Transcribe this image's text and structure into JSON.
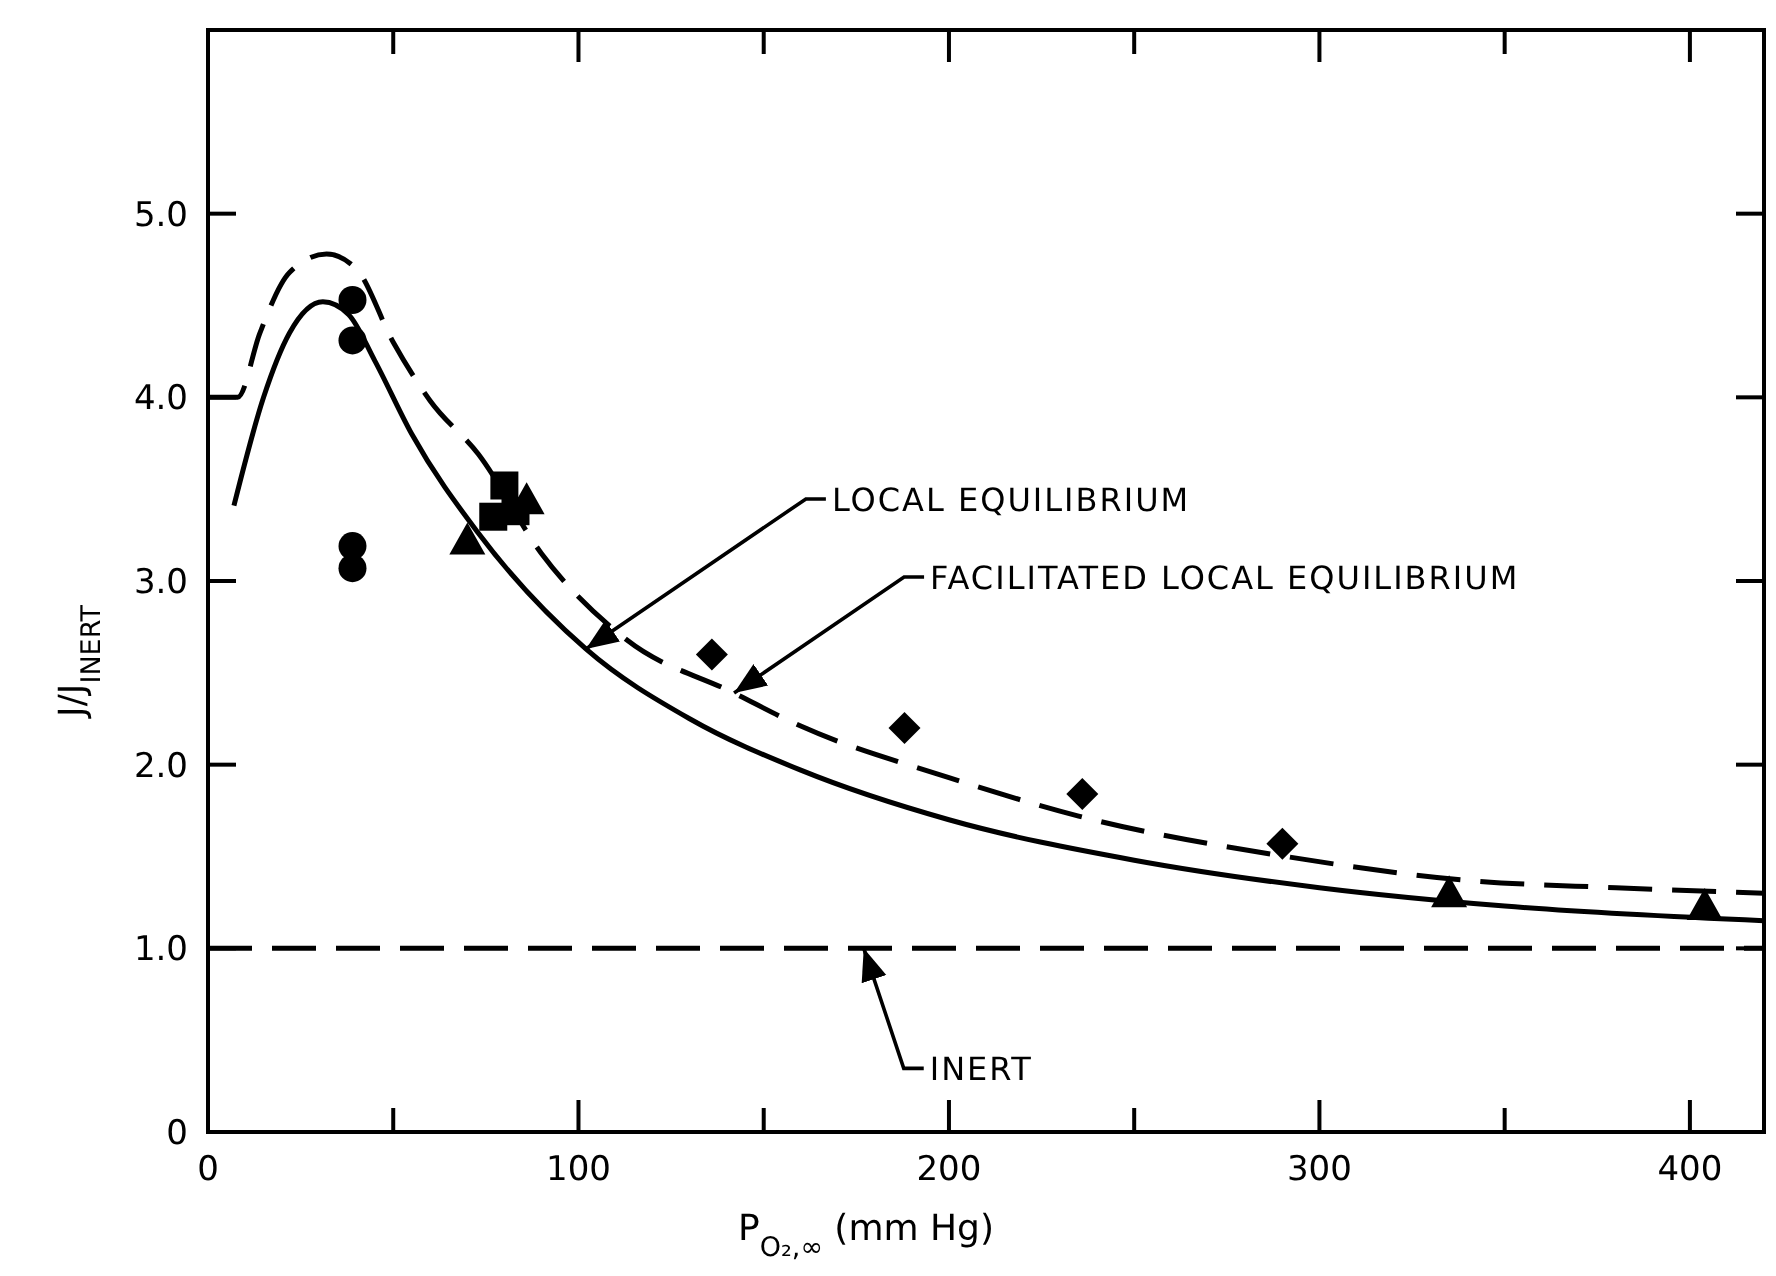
{
  "chart_data": {
    "type": "scatter",
    "xlabel": "P$_{O₂,∞}$ (mm Hg)",
    "ylabel": "J/J$_{INERT}$",
    "xlim": [
      0,
      420
    ],
    "xticks": [
      0,
      {
        "value": 50,
        "label": null
      },
      100,
      {
        "value": 150,
        "label": null
      },
      200,
      {
        "value": 250,
        "label": null
      },
      300,
      {
        "value": 350,
        "label": null
      },
      400
    ],
    "ylim": [
      0,
      6
    ],
    "yticks": [
      0,
      {
        "value": 1,
        "label": "1.0"
      },
      {
        "value": 2,
        "label": "2.0"
      },
      {
        "value": 3,
        "label": "3.0"
      },
      {
        "value": 4,
        "label": "4.0"
      },
      {
        "value": 5,
        "label": "5.0"
      }
    ],
    "grid": false,
    "series": [
      {
        "type": "line",
        "line_style": "solid",
        "marker": "none",
        "color": "#000000",
        "x": [
          7,
          15,
          22,
          31,
          38,
          45,
          55,
          73,
          102,
          130,
          160,
          200,
          250,
          300,
          350,
          420
        ],
        "values": [
          3.41,
          4.0,
          4.35,
          4.52,
          4.45,
          4.2,
          3.8,
          3.26,
          2.63,
          2.25,
          1.97,
          1.7,
          1.48,
          1.33,
          1.23,
          1.15
        ]
      },
      {
        "type": "line",
        "line_style": "dashed",
        "marker": "none",
        "color": "#000000",
        "x": [
          0,
          8,
          14,
          22,
          32,
          40,
          50,
          60,
          73,
          90,
          113,
          142,
          160,
          200,
          235,
          291,
          340,
          380,
          420
        ],
        "values": [
          4.0,
          4.0,
          4.35,
          4.68,
          4.78,
          4.7,
          4.3,
          3.98,
          3.69,
          3.15,
          2.68,
          2.39,
          2.21,
          1.93,
          1.72,
          1.5,
          1.37,
          1.33,
          1.3
        ]
      },
      {
        "marker": "circle",
        "color": "#000000",
        "x": [
          39,
          39,
          39,
          39
        ],
        "values": [
          4.53,
          4.31,
          3.19,
          3.07
        ]
      },
      {
        "marker": "square",
        "color": "#000000",
        "x": [
          80,
          77,
          83
        ],
        "values": [
          3.52,
          3.35,
          3.38
        ]
      },
      {
        "marker": "triangle",
        "color": "#000000",
        "x": [
          70,
          86,
          335,
          404
        ],
        "values": [
          3.22,
          3.44,
          1.3,
          1.23
        ]
      },
      {
        "marker": "diamond",
        "color": "#000000",
        "x": [
          136,
          188,
          236,
          290
        ],
        "values": [
          2.6,
          2.2,
          1.84,
          1.57
        ]
      }
    ],
    "ref_lines": [
      {
        "axis": "y",
        "value": 1.0,
        "line_style": "dashed",
        "color": "#000000"
      }
    ],
    "annotations": [
      {
        "text": "LOCAL EQUILIBRIUM",
        "x": 102,
        "y": 2.63
      },
      {
        "text": "FACILITATED LOCAL EQUILIBRIUM",
        "x": 142,
        "y": 2.39
      },
      {
        "text": "INERT",
        "x": 177,
        "y": 1.0
      }
    ]
  }
}
